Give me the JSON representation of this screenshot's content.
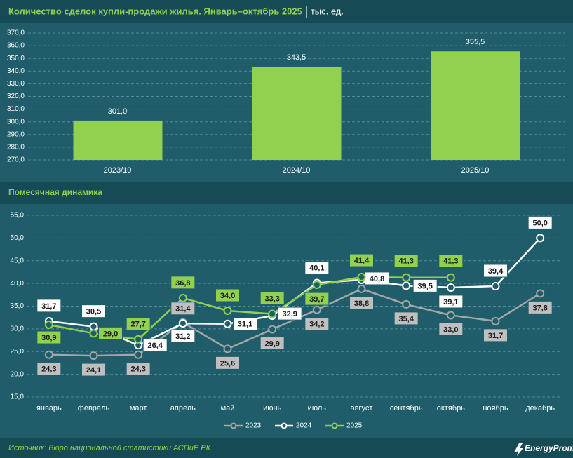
{
  "header": {
    "title": "Количество сделок купли-продажи жилья. Январь–октябрь 2025",
    "unit": "тыс. ед."
  },
  "chart_data": [
    {
      "type": "bar",
      "categories": [
        "2023/10",
        "2024/10",
        "2025/10"
      ],
      "values": [
        301.0,
        343.5,
        355.5
      ],
      "value_labels": [
        "301,0",
        "343,5",
        "355,5"
      ],
      "color": "#92d050",
      "ylim": [
        270,
        370
      ],
      "yticks": [
        {
          "value": 270,
          "label": "270,0"
        },
        {
          "value": 280,
          "label": "280,0"
        },
        {
          "value": 290,
          "label": "290,0"
        },
        {
          "value": 300,
          "label": "300,0"
        },
        {
          "value": 310,
          "label": "310,0"
        },
        {
          "value": 320,
          "label": "320,0"
        },
        {
          "value": 330,
          "label": "330,0"
        },
        {
          "value": 340,
          "label": "340,0"
        },
        {
          "value": 350,
          "label": "350,0"
        },
        {
          "value": 360,
          "label": "360,0"
        },
        {
          "value": 370,
          "label": "370,0"
        }
      ],
      "grid": true
    },
    {
      "type": "line",
      "title": "Помесячная динамика",
      "categories": [
        "январь",
        "февраль",
        "март",
        "апрель",
        "май",
        "июнь",
        "июль",
        "август",
        "сентябрь",
        "октябрь",
        "ноябрь",
        "декабрь"
      ],
      "series": [
        {
          "name": "2023",
          "color": "#a6a6a6",
          "values": [
            24.3,
            24.1,
            24.3,
            31.4,
            25.6,
            29.9,
            34.2,
            38.8,
            35.4,
            33.0,
            31.7,
            37.8
          ],
          "value_labels": [
            "24,3",
            "24,1",
            "24,3",
            "31,4",
            "25,6",
            "29,9",
            "34,2",
            "38,8",
            "35,4",
            "33,0",
            "31,7",
            "37,8"
          ]
        },
        {
          "name": "2024",
          "color": "#ffffff",
          "values": [
            31.7,
            30.5,
            26.4,
            31.2,
            31.1,
            32.9,
            40.1,
            40.8,
            39.5,
            39.1,
            39.4,
            50.0
          ],
          "value_labels": [
            "31,7",
            "30,5",
            "26,4",
            "31,2",
            "31,1",
            "32,9",
            "40,1",
            "40,8",
            "39,5",
            "39,1",
            "39,4",
            "50,0"
          ]
        },
        {
          "name": "2025",
          "color": "#92d050",
          "values": [
            30.9,
            29.0,
            27.7,
            36.8,
            34.0,
            33.3,
            39.7,
            41.4,
            41.3,
            41.3,
            null,
            null
          ],
          "value_labels": [
            "30,9",
            "29,0",
            "27,7",
            "36,8",
            "34,0",
            "33,3",
            "39,7",
            "41,4",
            "41,3",
            "41,3",
            null,
            null
          ]
        }
      ],
      "ylim": [
        15,
        55
      ],
      "yticks": [
        {
          "value": 15,
          "label": "15,0"
        },
        {
          "value": 20,
          "label": "20,0"
        },
        {
          "value": 25,
          "label": "25,0"
        },
        {
          "value": 30,
          "label": "30,0"
        },
        {
          "value": 35,
          "label": "35,0"
        },
        {
          "value": 40,
          "label": "40,0"
        },
        {
          "value": 45,
          "label": "45,0"
        },
        {
          "value": 50,
          "label": "50,0"
        },
        {
          "value": 55,
          "label": "55,0"
        }
      ],
      "grid": true,
      "legend": "bottom"
    }
  ],
  "footer": {
    "source": "Источник: Бюро национальной статистики АСПиР РК",
    "logo": "EnergyProm"
  }
}
